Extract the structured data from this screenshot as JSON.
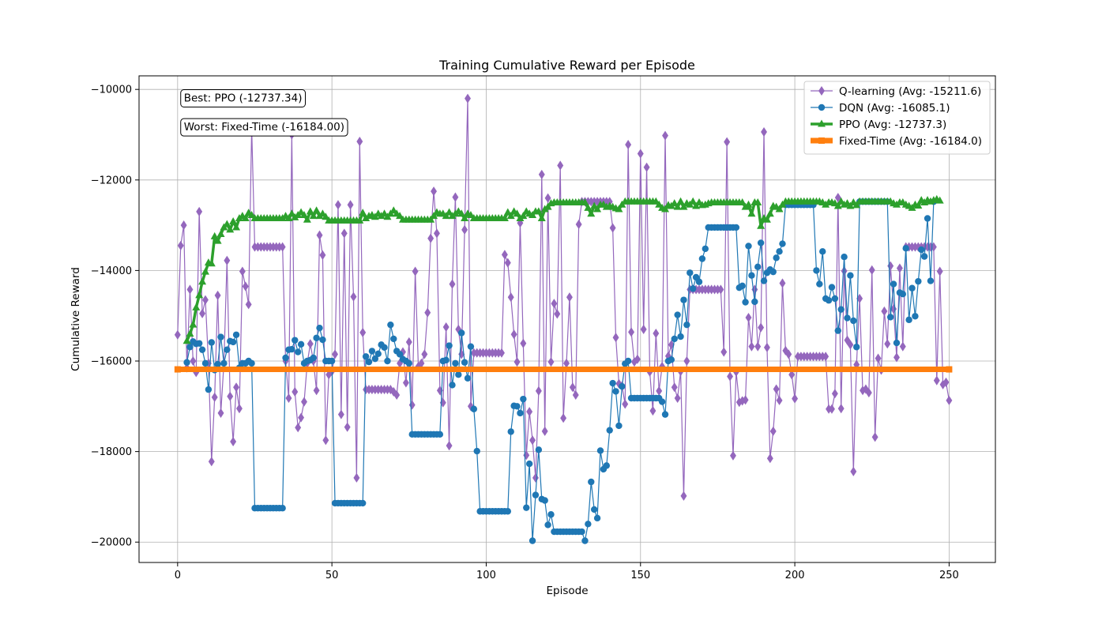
{
  "chart_data": {
    "type": "line",
    "title": "Training Cumulative Reward per Episode",
    "xlabel": "Episode",
    "ylabel": "Cumulative Reward",
    "xlim": [
      -12.5,
      265
    ],
    "ylim": [
      -20450,
      -9700
    ],
    "xticks": [
      0,
      50,
      100,
      150,
      200,
      250
    ],
    "yticks": [
      -20000,
      -18000,
      -16000,
      -14000,
      -12000,
      -10000
    ],
    "grid": true,
    "legend_position": "top-right",
    "annotations": [
      {
        "text": "Best: PPO (-12737.34)",
        "x": 1,
        "y": -10180
      },
      {
        "text": "Worst: Fixed-Time (-16184.00)",
        "x": 1,
        "y": -10820
      }
    ],
    "series": [
      {
        "name": "Q-learning (Avg: -15211.6)",
        "color": "#9467bd",
        "marker": "diamond",
        "x_start": 0,
        "values": [
          -15420,
          -13450,
          -13000,
          -16150,
          -14420,
          -16000,
          -16250,
          -12700,
          -14950,
          -14650,
          -16050,
          -18220,
          -16800,
          -14550,
          -17150,
          -16050,
          -13780,
          -16780,
          -17780,
          -16580,
          -17050,
          -14020,
          -14350,
          -14750,
          -10850,
          -13480,
          -13480,
          -13480,
          -13480,
          -13480,
          -13480,
          -13480,
          -13480,
          -13480,
          -13480,
          -16000,
          -16820,
          -11000,
          -16680,
          -17470,
          -17250,
          -16900,
          -16050,
          -15620,
          -16000,
          -16650,
          -13220,
          -13660,
          -17750,
          -16300,
          -16230,
          -15850,
          -12550,
          -17180,
          -13180,
          -17460,
          -12550,
          -14580,
          -18580,
          -11150,
          -15370,
          -16630,
          -16630,
          -16630,
          -16630,
          -16630,
          -16630,
          -16630,
          -16630,
          -16630,
          -16680,
          -16750,
          -16050,
          -15800,
          -16480,
          -15580,
          -16970,
          -14020,
          -16120,
          -16050,
          -15850,
          -14930,
          -13290,
          -12250,
          -13180,
          -16650,
          -16920,
          -15250,
          -17870,
          -14300,
          -12380,
          -15300,
          -15850,
          -13100,
          -10200,
          -17000,
          -15820,
          -15820,
          -15820,
          -15820,
          -15820,
          -15820,
          -15820,
          -15820,
          -15820,
          -15820,
          -13650,
          -13830,
          -14590,
          -15410,
          -16020,
          -12950,
          -15610,
          -18080,
          -17120,
          -17750,
          -18580,
          -16660,
          -11880,
          -17550,
          -12400,
          -16020,
          -14730,
          -14960,
          -11680,
          -17260,
          -16050,
          -14590,
          -16580,
          -16750,
          -12980,
          -12480,
          -12480,
          -12480,
          -12480,
          -12480,
          -12480,
          -12480,
          -12480,
          -12480,
          -12480,
          -13060,
          -15480,
          -16500,
          -16550,
          -16950,
          -11220,
          -15360,
          -16020,
          -15960,
          -11420,
          -15300,
          -11720,
          -16240,
          -17100,
          -15390,
          -16660,
          -16120,
          -11020,
          -15890,
          -15640,
          -16580,
          -16820,
          -16230,
          -18980,
          -16000,
          -14420,
          -14420,
          -14420,
          -14420,
          -14420,
          -14420,
          -14420,
          -14420,
          -14420,
          -14420,
          -14420,
          -15800,
          -11160,
          -16340,
          -18090,
          -16240,
          -16910,
          -16880,
          -16860,
          -15040,
          -15680,
          -14420,
          -15680,
          -15260,
          -10940,
          -15700,
          -18150,
          -17550,
          -16620,
          -16870,
          -14280,
          -15770,
          -15850,
          -16300,
          -16830,
          -15900,
          -15900,
          -15900,
          -15900,
          -15900,
          -15900,
          -15900,
          -15900,
          -15900,
          -15900,
          -17060,
          -17060,
          -16720,
          -12390,
          -17050,
          -14010,
          -15540,
          -15640,
          -18440,
          -16080,
          -14620,
          -16650,
          -16620,
          -16700,
          -13990,
          -17680,
          -15940,
          -16200,
          -14900,
          -15620,
          -13900,
          -14850,
          -15920,
          -13950,
          -15680,
          -13480,
          -13480,
          -13480,
          -13480,
          -13480,
          -13480,
          -13480,
          -13480,
          -13480,
          -13480,
          -16430,
          -14020,
          -16520,
          -16470,
          -16870
        ]
      },
      {
        "name": "DQN (Avg: -16085.1)",
        "color": "#1f77b4",
        "marker": "circle",
        "x_start": 3,
        "values": [
          -16030,
          -15690,
          -15570,
          -15620,
          -15610,
          -15750,
          -16050,
          -16630,
          -15590,
          -16200,
          -16070,
          -15470,
          -16050,
          -15750,
          -15560,
          -15580,
          -15420,
          -16150,
          -16050,
          -16050,
          -16000,
          -16050,
          -19250,
          -19250,
          -19250,
          -19250,
          -19250,
          -19250,
          -19250,
          -19250,
          -19250,
          -19250,
          -15930,
          -15750,
          -15740,
          -15540,
          -15800,
          -15630,
          -16050,
          -16000,
          -15980,
          -15930,
          -15490,
          -15270,
          -15530,
          -16000,
          -16000,
          -16000,
          -19140,
          -19140,
          -19140,
          -19140,
          -19140,
          -19140,
          -19140,
          -19140,
          -19140,
          -19140,
          -15900,
          -16020,
          -15780,
          -15950,
          -15840,
          -15640,
          -15700,
          -16000,
          -15200,
          -15510,
          -15780,
          -15850,
          -15960,
          -16000,
          -16050,
          -17620,
          -17620,
          -17620,
          -17620,
          -17620,
          -17620,
          -17620,
          -17620,
          -17620,
          -17620,
          -16000,
          -15980,
          -15660,
          -16530,
          -16050,
          -16300,
          -15380,
          -16030,
          -16380,
          -15680,
          -17060,
          -17990,
          -19320,
          -19320,
          -19320,
          -19320,
          -19320,
          -19320,
          -19320,
          -19320,
          -19320,
          -19320,
          -17560,
          -16990,
          -17000,
          -17150,
          -16840,
          -19240,
          -18270,
          -19970,
          -18960,
          -17960,
          -19050,
          -19080,
          -19620,
          -19390,
          -19770,
          -19770,
          -19770,
          -19770,
          -19770,
          -19770,
          -19770,
          -19770,
          -19770,
          -19770,
          -19970,
          -19600,
          -18670,
          -19280,
          -19470,
          -17980,
          -18390,
          -18310,
          -17530,
          -16490,
          -16670,
          -17430,
          -16560,
          -16060,
          -16000,
          -16820,
          -16820,
          -16820,
          -16820,
          -16820,
          -16820,
          -16820,
          -16820,
          -16820,
          -16820,
          -16900,
          -17180,
          -16000,
          -15970,
          -15510,
          -14980,
          -15460,
          -14650,
          -15200,
          -14050,
          -14400,
          -14150,
          -14250,
          -13740,
          -13520,
          -13050,
          -13050,
          -13050,
          -13050,
          -13050,
          -13050,
          -13050,
          -13050,
          -13050,
          -13050,
          -14380,
          -14340,
          -14700,
          -13460,
          -14110,
          -14690,
          -13920,
          -13390,
          -14230,
          -14050,
          -13980,
          -14030,
          -13720,
          -13580,
          -13410,
          -12550,
          -12550,
          -12550,
          -12550,
          -12550,
          -12550,
          -12550,
          -12550,
          -12550,
          -12550,
          -14000,
          -14300,
          -13580,
          -14620,
          -14660,
          -14370,
          -14620,
          -15330,
          -14860,
          -13700,
          -15050,
          -14110,
          -15110,
          -15690,
          -12480,
          -12480,
          -12480,
          -12480,
          -12480,
          -12480,
          -12480,
          -12480,
          -12480,
          -12480,
          -15030,
          -14300,
          -15600,
          -14490,
          -14520,
          -13510,
          -15090,
          -14390,
          -15010,
          -14240,
          -13540,
          -13690,
          -12850,
          -14230,
          -12480
        ]
      },
      {
        "name": "PPO (Avg: -12737.3)",
        "color": "#2ca02c",
        "marker": "triangle",
        "x_start": 3,
        "values": [
          -15560,
          -15400,
          -15200,
          -14820,
          -14550,
          -14250,
          -14030,
          -13830,
          -13850,
          -13250,
          -13350,
          -13200,
          -13050,
          -12980,
          -13100,
          -12920,
          -13050,
          -12850,
          -12800,
          -12850,
          -12730,
          -12780,
          -12850,
          -12850,
          -12850,
          -12850,
          -12850,
          -12850,
          -12850,
          -12850,
          -12850,
          -12850,
          -12800,
          -12850,
          -12750,
          -12830,
          -12780,
          -12720,
          -12780,
          -12880,
          -12700,
          -12800,
          -12680,
          -12800,
          -12750,
          -12820,
          -12900,
          -12900,
          -12900,
          -12900,
          -12900,
          -12900,
          -12900,
          -12900,
          -12900,
          -12900,
          -12900,
          -12730,
          -12850,
          -12800,
          -12780,
          -12820,
          -12750,
          -12800,
          -12750,
          -12820,
          -12750,
          -12680,
          -12750,
          -12800,
          -12880,
          -12880,
          -12880,
          -12880,
          -12880,
          -12880,
          -12880,
          -12880,
          -12880,
          -12880,
          -12800,
          -12720,
          -12750,
          -12750,
          -12800,
          -12720,
          -12800,
          -12750,
          -12700,
          -12750,
          -12850,
          -12750,
          -12780,
          -12850,
          -12850,
          -12850,
          -12850,
          -12850,
          -12850,
          -12850,
          -12850,
          -12850,
          -12850,
          -12850,
          -12720,
          -12800,
          -12700,
          -12750,
          -12850,
          -12800,
          -12700,
          -12750,
          -12780,
          -12700,
          -12700,
          -12850,
          -12650,
          -12600,
          -12520,
          -12500,
          -12500,
          -12500,
          -12500,
          -12500,
          -12500,
          -12500,
          -12500,
          -12500,
          -12500,
          -12500,
          -12620,
          -12750,
          -12580,
          -12650,
          -12550,
          -12550,
          -12600,
          -12580,
          -12600,
          -12630,
          -12650,
          -12550,
          -12480,
          -12480,
          -12480,
          -12480,
          -12480,
          -12480,
          -12480,
          -12480,
          -12480,
          -12480,
          -12480,
          -12550,
          -12620,
          -12650,
          -12560,
          -12580,
          -12520,
          -12600,
          -12480,
          -12600,
          -12520,
          -12550,
          -12480,
          -12580,
          -12500,
          -12560,
          -12550,
          -12520,
          -12500,
          -12500,
          -12500,
          -12500,
          -12500,
          -12500,
          -12500,
          -12500,
          -12500,
          -12500,
          -12500,
          -12600,
          -12550,
          -12750,
          -12500,
          -12500,
          -13020,
          -12850,
          -12880,
          -12750,
          -12580,
          -12600,
          -12650,
          -12550,
          -12480,
          -12480,
          -12480,
          -12480,
          -12480,
          -12480,
          -12480,
          -12480,
          -12480,
          -12480,
          -12480,
          -12480,
          -12500,
          -12550,
          -12500,
          -12500,
          -12520,
          -12580,
          -12480,
          -12550,
          -12520,
          -12580,
          -12500,
          -12560,
          -12480,
          -12480,
          -12480,
          -12480,
          -12480,
          -12480,
          -12480,
          -12480,
          -12480,
          -12480,
          -12480,
          -12520,
          -12550,
          -12500,
          -12500,
          -12550,
          -12580,
          -12620,
          -12550,
          -12570,
          -12450,
          -12500,
          -12450,
          -12480,
          -12450,
          -12430,
          -12460
        ]
      },
      {
        "name": "Fixed-Time (Avg: -16184.0)",
        "color": "#ff7f0e",
        "marker": "square",
        "x": [
          0,
          250
        ],
        "y": [
          -16184,
          -16184
        ]
      }
    ]
  }
}
